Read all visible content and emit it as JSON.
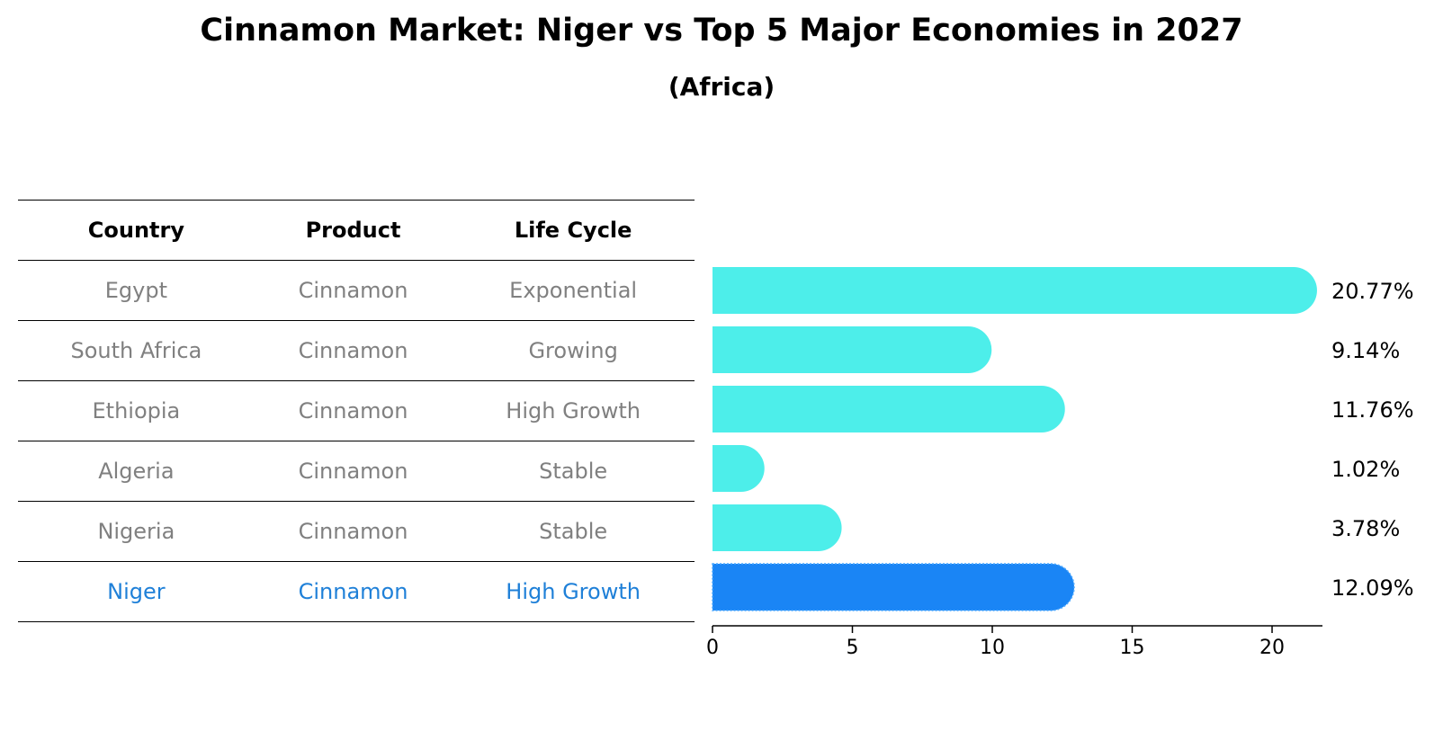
{
  "chart_data": {
    "type": "bar",
    "orientation": "horizontal",
    "title": "Cinnamon Market: Niger vs Top 5 Major Economies in 2027",
    "subtitle": "(Africa)",
    "table": {
      "headers": [
        "Country",
        "Product",
        "Life Cycle"
      ],
      "rows": [
        [
          "Egypt",
          "Cinnamon",
          "Exponential"
        ],
        [
          "South Africa",
          "Cinnamon",
          "Growing"
        ],
        [
          "Ethiopia",
          "Cinnamon",
          "High Growth"
        ],
        [
          "Algeria",
          "Cinnamon",
          "Stable"
        ],
        [
          "Nigeria",
          "Cinnamon",
          "Stable"
        ],
        [
          "Niger",
          "Cinnamon",
          "High Growth"
        ]
      ],
      "highlight_row": 5
    },
    "categories": [
      "Egypt",
      "South Africa",
      "Ethiopia",
      "Algeria",
      "Nigeria",
      "Niger"
    ],
    "values": [
      20.77,
      9.14,
      11.76,
      1.02,
      3.78,
      12.09
    ],
    "value_labels": [
      "20.77%",
      "9.14%",
      "11.76%",
      "1.02%",
      "3.78%",
      "12.09%"
    ],
    "xlim": [
      0,
      21.8
    ],
    "xticks": [
      0,
      5,
      10,
      15,
      20
    ],
    "xtick_labels": [
      "0",
      "5",
      "10",
      "15",
      "20"
    ],
    "colors": {
      "bar": "#4deeea",
      "highlight": "#1a85f5",
      "text": "#000000",
      "muted": "#808080",
      "highlight_text": "#1f80d8"
    }
  }
}
